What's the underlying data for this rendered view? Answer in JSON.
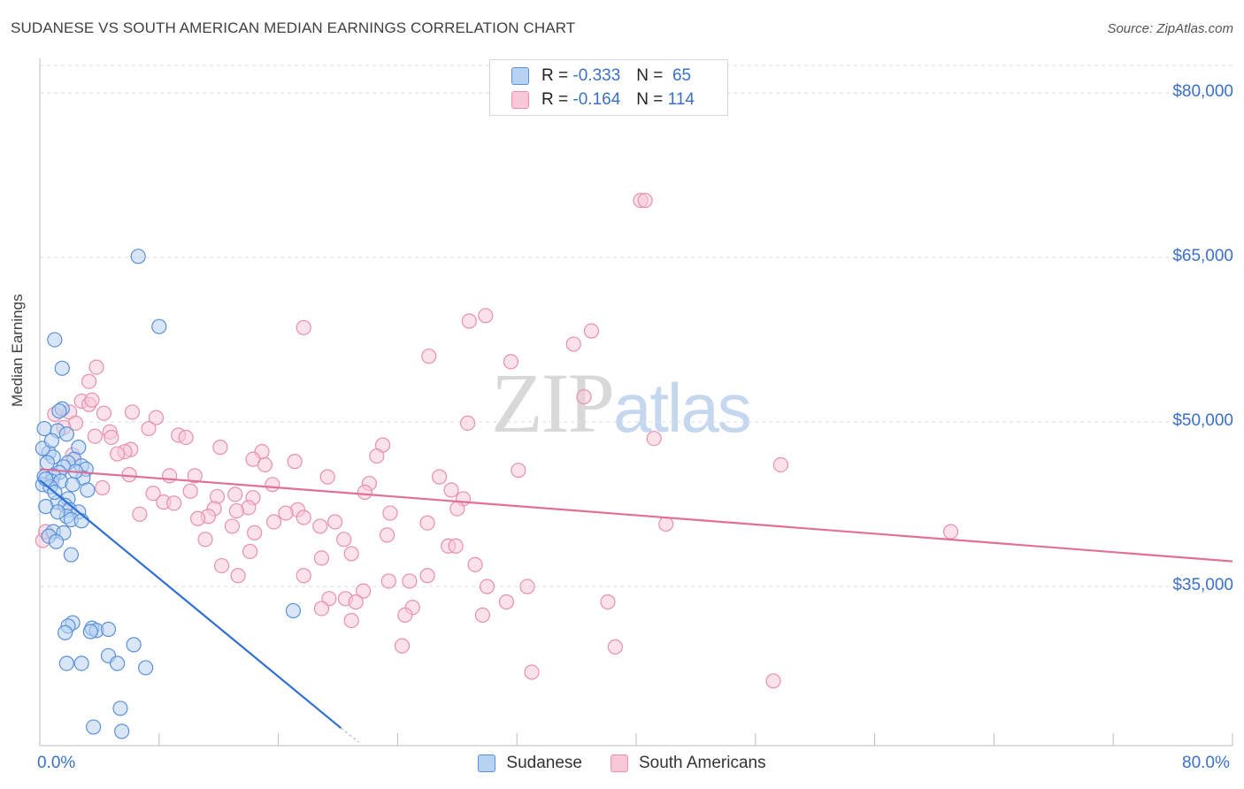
{
  "title": "SUDANESE VS SOUTH AMERICAN MEDIAN EARNINGS CORRELATION CHART",
  "source": "Source: ZipAtlas.com",
  "watermark": {
    "zip": "ZIP",
    "atlas": "atlas"
  },
  "colors": {
    "blue_fill": "#b8d2f2",
    "blue_stroke": "#5a90d8",
    "blue_line": "#2f6fd4",
    "pink_fill": "#f8c8d8",
    "pink_stroke": "#e890ac",
    "pink_line": "#e07098",
    "grid": "#dddddd",
    "tick_text": "#3a70c8"
  },
  "legend_top": [
    {
      "series": "Sudanese",
      "r_label": "R =",
      "r": "-0.333",
      "n_label": "N =",
      "n": "65"
    },
    {
      "series": "South Americans",
      "r_label": "R =",
      "r": "-0.164",
      "n_label": "N =",
      "n": "114"
    }
  ],
  "chart_data": {
    "type": "scatter",
    "title": "SUDANESE VS SOUTH AMERICAN MEDIAN EARNINGS CORRELATION CHART",
    "xlabel": "",
    "ylabel": "Median Earnings",
    "xlim": [
      0,
      80
    ],
    "ylim": [
      20500,
      82500
    ],
    "x_tick_labels": [
      "0.0%",
      "80.0%"
    ],
    "y_ticks": [
      35000,
      50000,
      65000,
      80000
    ],
    "y_tick_labels": [
      "$35,000",
      "$50,000",
      "$65,000",
      "$80,000"
    ],
    "grid": true,
    "legend": "bottom-center",
    "series": [
      {
        "name": "Sudanese",
        "color": "blue",
        "trend": {
          "x": [
            0,
            20.2
          ],
          "y": [
            44700,
            22100
          ],
          "dashed_to": [
            21.4,
            20800
          ]
        },
        "points": [
          [
            1.0,
            57500
          ],
          [
            1.5,
            54900
          ],
          [
            6.6,
            65100
          ],
          [
            8.0,
            58700
          ],
          [
            1.5,
            51200
          ],
          [
            1.3,
            51000
          ],
          [
            0.3,
            49400
          ],
          [
            1.2,
            49200
          ],
          [
            2.6,
            47700
          ],
          [
            0.6,
            47200
          ],
          [
            0.9,
            46800
          ],
          [
            2.3,
            46600
          ],
          [
            1.9,
            46300
          ],
          [
            2.8,
            46000
          ],
          [
            1.6,
            45900
          ],
          [
            1.3,
            45400
          ],
          [
            0.9,
            45100
          ],
          [
            0.3,
            45000
          ],
          [
            3.1,
            45700
          ],
          [
            0.8,
            44600
          ],
          [
            1.4,
            44600
          ],
          [
            2.9,
            44900
          ],
          [
            0.2,
            44300
          ],
          [
            0.7,
            44100
          ],
          [
            3.2,
            43800
          ],
          [
            1.9,
            43000
          ],
          [
            1.2,
            42700
          ],
          [
            1.7,
            42400
          ],
          [
            0.4,
            42300
          ],
          [
            2.0,
            42000
          ],
          [
            2.6,
            41800
          ],
          [
            1.8,
            41400
          ],
          [
            2.1,
            41100
          ],
          [
            2.8,
            41000
          ],
          [
            0.9,
            40000
          ],
          [
            1.6,
            39900
          ],
          [
            0.6,
            39600
          ],
          [
            1.1,
            39100
          ],
          [
            2.1,
            37900
          ],
          [
            2.2,
            31700
          ],
          [
            1.9,
            31400
          ],
          [
            1.7,
            30800
          ],
          [
            3.5,
            31200
          ],
          [
            3.8,
            31000
          ],
          [
            3.4,
            30900
          ],
          [
            4.6,
            31100
          ],
          [
            6.3,
            29700
          ],
          [
            4.6,
            28700
          ],
          [
            1.8,
            28000
          ],
          [
            2.8,
            28000
          ],
          [
            5.2,
            28000
          ],
          [
            7.1,
            27600
          ],
          [
            5.4,
            23900
          ],
          [
            3.6,
            22200
          ],
          [
            5.5,
            21800
          ],
          [
            17.0,
            32800
          ],
          [
            0.2,
            47600
          ],
          [
            0.5,
            46300
          ],
          [
            1.0,
            43600
          ],
          [
            2.4,
            45500
          ],
          [
            0.8,
            48300
          ],
          [
            1.8,
            48900
          ],
          [
            0.4,
            44800
          ],
          [
            1.2,
            41800
          ],
          [
            2.2,
            44300
          ]
        ]
      },
      {
        "name": "South Americans",
        "color": "pink",
        "trend": {
          "x": [
            0,
            80
          ],
          "y": [
            45700,
            37300
          ]
        },
        "points": [
          [
            40.3,
            70200
          ],
          [
            40.6,
            70200
          ],
          [
            29.9,
            59700
          ],
          [
            28.8,
            59200
          ],
          [
            17.7,
            58600
          ],
          [
            37.0,
            58300
          ],
          [
            35.8,
            57100
          ],
          [
            26.1,
            56000
          ],
          [
            31.6,
            55500
          ],
          [
            3.8,
            55000
          ],
          [
            3.3,
            53700
          ],
          [
            36.5,
            52300
          ],
          [
            2.8,
            51900
          ],
          [
            3.3,
            51600
          ],
          [
            4.3,
            50800
          ],
          [
            2.0,
            50900
          ],
          [
            6.2,
            50900
          ],
          [
            7.8,
            50400
          ],
          [
            2.4,
            49900
          ],
          [
            28.7,
            49900
          ],
          [
            1.6,
            49500
          ],
          [
            7.3,
            49400
          ],
          [
            4.7,
            49100
          ],
          [
            9.3,
            48800
          ],
          [
            3.7,
            48700
          ],
          [
            9.8,
            48600
          ],
          [
            41.2,
            48500
          ],
          [
            23.0,
            47900
          ],
          [
            12.1,
            47700
          ],
          [
            6.1,
            47500
          ],
          [
            5.7,
            47300
          ],
          [
            14.9,
            47300
          ],
          [
            5.2,
            47100
          ],
          [
            22.6,
            46900
          ],
          [
            14.3,
            46600
          ],
          [
            17.1,
            46400
          ],
          [
            15.1,
            46100
          ],
          [
            49.7,
            46100
          ],
          [
            32.1,
            45600
          ],
          [
            6.0,
            45200
          ],
          [
            8.7,
            45100
          ],
          [
            10.4,
            45100
          ],
          [
            19.3,
            45000
          ],
          [
            26.8,
            45000
          ],
          [
            22.1,
            44400
          ],
          [
            15.6,
            44300
          ],
          [
            27.6,
            43800
          ],
          [
            10.1,
            43700
          ],
          [
            7.6,
            43500
          ],
          [
            21.8,
            43600
          ],
          [
            13.1,
            43400
          ],
          [
            14.3,
            43100
          ],
          [
            11.9,
            43200
          ],
          [
            28.4,
            43000
          ],
          [
            8.3,
            42700
          ],
          [
            9.0,
            42600
          ],
          [
            14.0,
            42200
          ],
          [
            11.7,
            42100
          ],
          [
            13.2,
            41900
          ],
          [
            17.3,
            42000
          ],
          [
            16.5,
            41700
          ],
          [
            28.0,
            42100
          ],
          [
            6.7,
            41600
          ],
          [
            23.5,
            41700
          ],
          [
            11.3,
            41400
          ],
          [
            17.7,
            41300
          ],
          [
            10.6,
            41200
          ],
          [
            15.7,
            40900
          ],
          [
            19.8,
            40900
          ],
          [
            26.0,
            40800
          ],
          [
            12.9,
            40500
          ],
          [
            18.8,
            40500
          ],
          [
            42.0,
            40700
          ],
          [
            61.1,
            40000
          ],
          [
            14.4,
            39900
          ],
          [
            23.3,
            39700
          ],
          [
            11.1,
            39300
          ],
          [
            20.4,
            39300
          ],
          [
            27.4,
            38700
          ],
          [
            27.9,
            38700
          ],
          [
            14.1,
            38200
          ],
          [
            20.9,
            38000
          ],
          [
            18.9,
            37600
          ],
          [
            29.2,
            37000
          ],
          [
            12.2,
            36900
          ],
          [
            17.7,
            36000
          ],
          [
            13.3,
            36000
          ],
          [
            26.0,
            36000
          ],
          [
            23.4,
            35500
          ],
          [
            24.8,
            35500
          ],
          [
            30.0,
            35000
          ],
          [
            32.7,
            35000
          ],
          [
            21.7,
            34600
          ],
          [
            19.4,
            33900
          ],
          [
            20.5,
            33900
          ],
          [
            21.2,
            33600
          ],
          [
            31.3,
            33600
          ],
          [
            38.1,
            33600
          ],
          [
            25.0,
            33100
          ],
          [
            18.9,
            33000
          ],
          [
            29.7,
            32400
          ],
          [
            24.5,
            32400
          ],
          [
            20.9,
            31900
          ],
          [
            24.3,
            29600
          ],
          [
            38.6,
            29500
          ],
          [
            33.0,
            27200
          ],
          [
            49.2,
            26400
          ],
          [
            0.2,
            39200
          ],
          [
            0.4,
            40000
          ],
          [
            2.2,
            47000
          ],
          [
            4.8,
            48600
          ],
          [
            1.0,
            50700
          ],
          [
            4.2,
            44000
          ],
          [
            3.5,
            52000
          ]
        ]
      }
    ]
  }
}
